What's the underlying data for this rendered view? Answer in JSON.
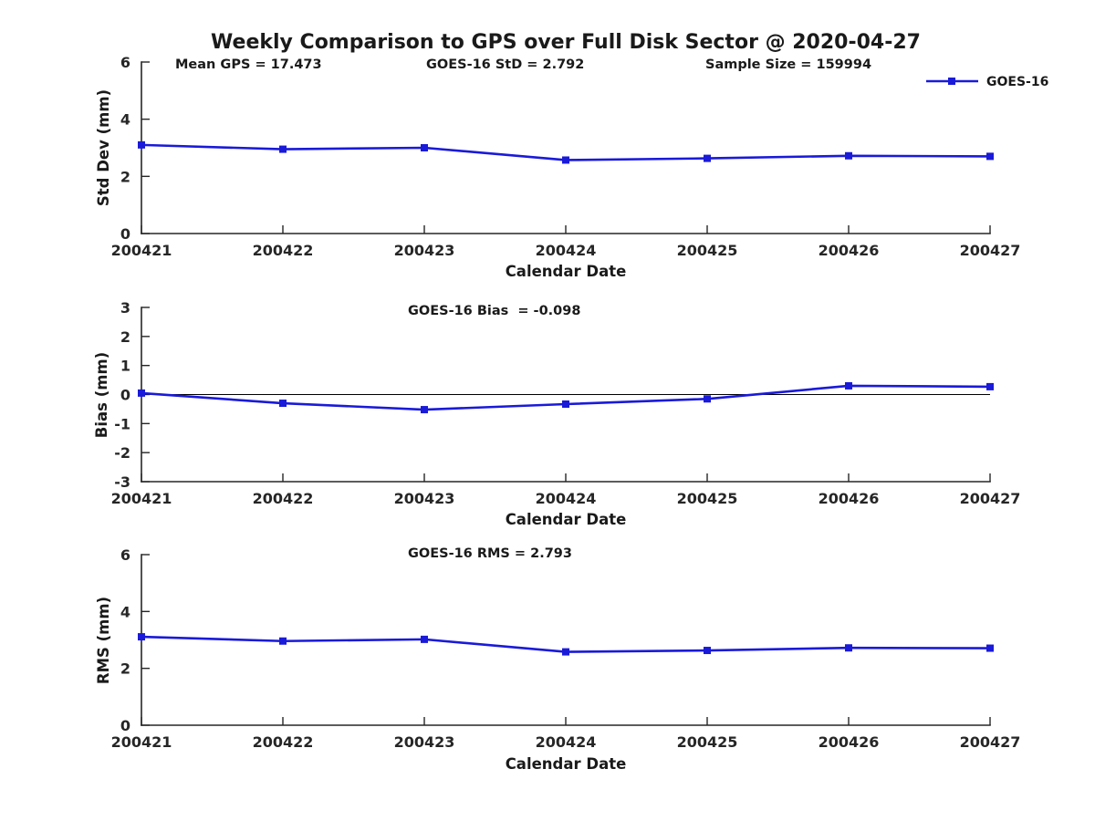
{
  "figure": {
    "title": "Weekly Comparison to GPS over Full Disk Sector @ 2020-04-27",
    "annotations": {
      "mean_gps": "Mean GPS = 17.473",
      "goes16_std": "GOES-16 StD = 2.792",
      "sample_size": "Sample Size = 159994"
    },
    "legend": {
      "label": "GOES-16"
    },
    "colors": {
      "series": "#1a1ad9",
      "axis": "#262626",
      "zero_line": "#000000",
      "background": "#ffffff"
    }
  },
  "chart_data": [
    {
      "type": "line",
      "title": "Weekly Comparison to GPS over Full Disk Sector @ 2020-04-27",
      "xlabel": "Calendar Date",
      "ylabel": "Std Dev (mm)",
      "categories": [
        "200421",
        "200422",
        "200423",
        "200424",
        "200425",
        "200426",
        "200427"
      ],
      "series": [
        {
          "name": "GOES-16",
          "values": [
            3.1,
            2.95,
            3.0,
            2.57,
            2.63,
            2.72,
            2.7
          ]
        }
      ],
      "ylim": [
        0,
        6
      ],
      "yticks": [
        0,
        2,
        4,
        6
      ],
      "grid": false,
      "legend_position": "top-right",
      "annotations": [
        "Mean GPS = 17.473",
        "GOES-16 StD = 2.792",
        "Sample Size = 159994"
      ]
    },
    {
      "type": "line",
      "xlabel": "Calendar Date",
      "ylabel": "Bias (mm)",
      "categories": [
        "200421",
        "200422",
        "200423",
        "200424",
        "200425",
        "200426",
        "200427"
      ],
      "series": [
        {
          "name": "GOES-16",
          "values": [
            0.05,
            -0.3,
            -0.52,
            -0.33,
            -0.15,
            0.3,
            0.27
          ]
        }
      ],
      "ylim": [
        -3,
        3
      ],
      "yticks": [
        -3,
        -2,
        -1,
        0,
        1,
        2,
        3
      ],
      "grid": false,
      "zero_line": true,
      "annotation": "GOES-16 Bias  = -0.098"
    },
    {
      "type": "line",
      "xlabel": "Calendar Date",
      "ylabel": "RMS (mm)",
      "categories": [
        "200421",
        "200422",
        "200423",
        "200424",
        "200425",
        "200426",
        "200427"
      ],
      "series": [
        {
          "name": "GOES-16",
          "values": [
            3.11,
            2.96,
            3.02,
            2.58,
            2.63,
            2.72,
            2.71
          ]
        }
      ],
      "ylim": [
        0,
        6
      ],
      "yticks": [
        0,
        2,
        4,
        6
      ],
      "grid": false,
      "annotation": "GOES-16 RMS = 2.793"
    }
  ]
}
